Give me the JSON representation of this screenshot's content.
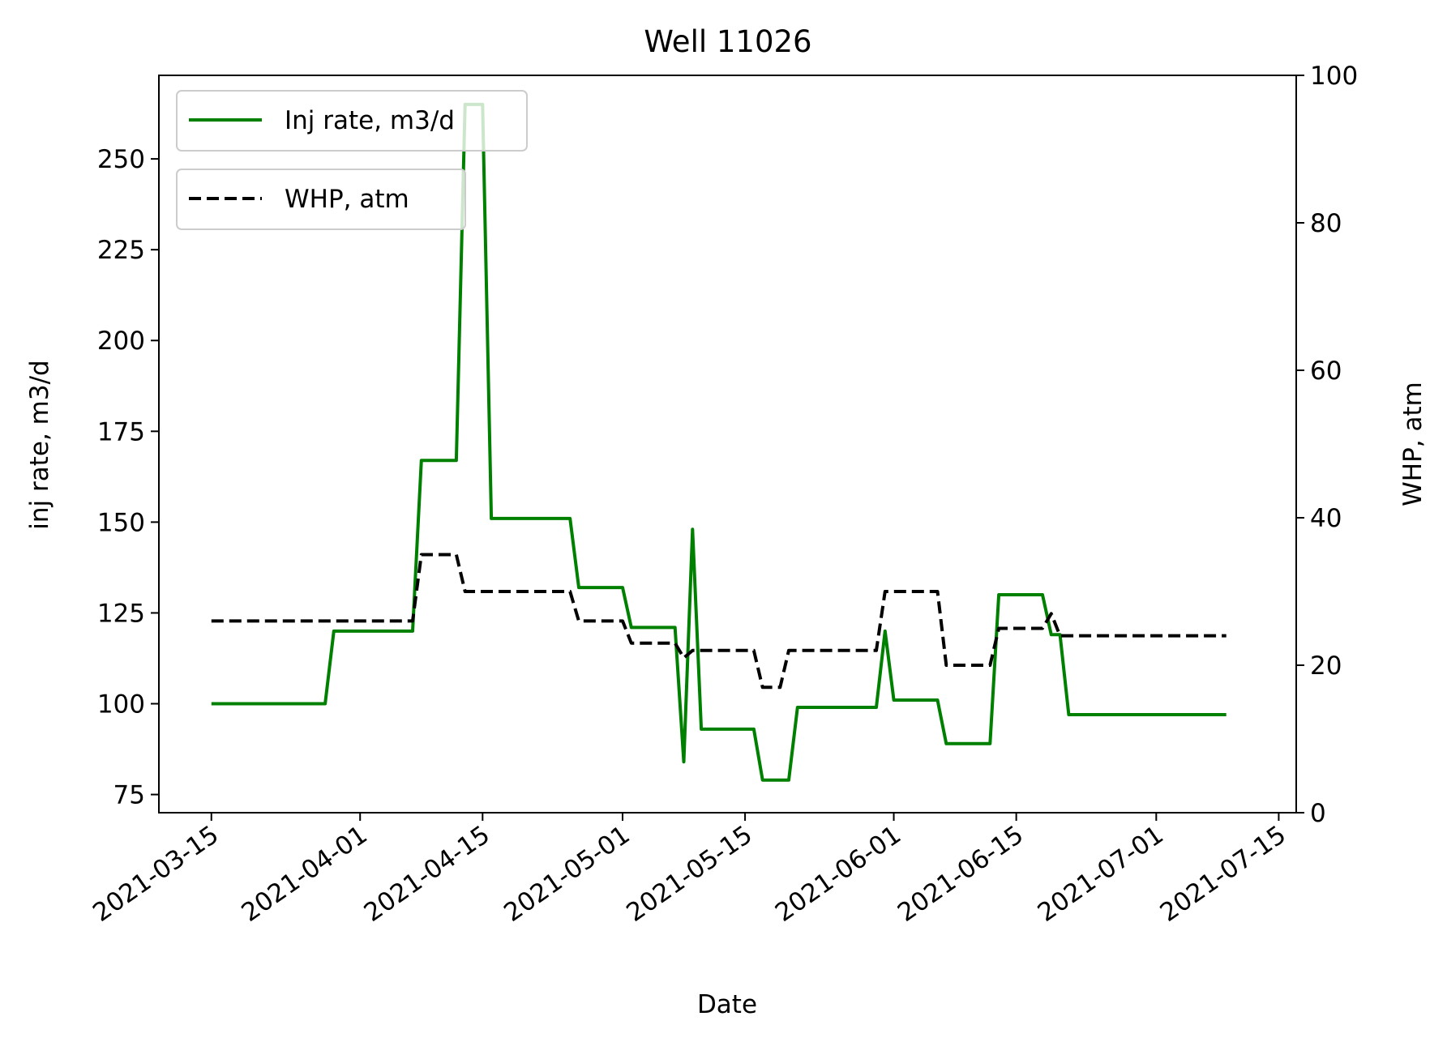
{
  "chart_data": {
    "type": "line",
    "title": "Well 11026",
    "xlabel": "Date",
    "ylabel_left": "inj rate, m3/d",
    "ylabel_right": "WHP, atm",
    "xlim": [
      "2021-03-09",
      "2021-07-17"
    ],
    "ylim_left": [
      70,
      273
    ],
    "ylim_right": [
      0,
      100
    ],
    "xticks": [
      "2021-03-15",
      "2021-04-01",
      "2021-04-15",
      "2021-05-01",
      "2021-05-15",
      "2021-06-01",
      "2021-06-15",
      "2021-07-01",
      "2021-07-15"
    ],
    "yticks_left": [
      75,
      100,
      125,
      150,
      175,
      200,
      225,
      250
    ],
    "yticks_right": [
      0,
      20,
      40,
      60,
      80,
      100
    ],
    "grid": false,
    "series": [
      {
        "name": "Inj rate, m3/d",
        "axis": "left",
        "color": "#008000",
        "style": "solid",
        "points": [
          [
            "2021-03-15",
            100
          ],
          [
            "2021-03-28",
            100
          ],
          [
            "2021-03-29",
            120
          ],
          [
            "2021-04-07",
            120
          ],
          [
            "2021-04-08",
            167
          ],
          [
            "2021-04-12",
            167
          ],
          [
            "2021-04-13",
            265
          ],
          [
            "2021-04-14",
            265
          ],
          [
            "2021-04-15",
            265
          ],
          [
            "2021-04-16",
            151
          ],
          [
            "2021-04-25",
            151
          ],
          [
            "2021-04-26",
            132
          ],
          [
            "2021-05-01",
            132
          ],
          [
            "2021-05-02",
            121
          ],
          [
            "2021-05-07",
            121
          ],
          [
            "2021-05-08",
            84
          ],
          [
            "2021-05-09",
            148
          ],
          [
            "2021-05-10",
            93
          ],
          [
            "2021-05-16",
            93
          ],
          [
            "2021-05-17",
            79
          ],
          [
            "2021-05-20",
            79
          ],
          [
            "2021-05-21",
            99
          ],
          [
            "2021-05-30",
            99
          ],
          [
            "2021-05-31",
            120
          ],
          [
            "2021-06-01",
            101
          ],
          [
            "2021-06-06",
            101
          ],
          [
            "2021-06-07",
            89
          ],
          [
            "2021-06-12",
            89
          ],
          [
            "2021-06-13",
            130
          ],
          [
            "2021-06-18",
            130
          ],
          [
            "2021-06-19",
            119
          ],
          [
            "2021-06-20",
            119
          ],
          [
            "2021-06-21",
            97
          ],
          [
            "2021-07-09",
            97
          ]
        ]
      },
      {
        "name": "WHP, atm",
        "axis": "right",
        "color": "#000000",
        "style": "dashed",
        "points": [
          [
            "2021-03-15",
            26
          ],
          [
            "2021-04-07",
            26
          ],
          [
            "2021-04-08",
            35
          ],
          [
            "2021-04-12",
            35
          ],
          [
            "2021-04-13",
            30
          ],
          [
            "2021-04-25",
            30
          ],
          [
            "2021-04-26",
            26
          ],
          [
            "2021-05-01",
            26
          ],
          [
            "2021-05-02",
            23
          ],
          [
            "2021-05-07",
            23
          ],
          [
            "2021-05-08",
            21
          ],
          [
            "2021-05-09",
            22
          ],
          [
            "2021-05-16",
            22
          ],
          [
            "2021-05-17",
            17
          ],
          [
            "2021-05-19",
            17
          ],
          [
            "2021-05-20",
            22
          ],
          [
            "2021-05-30",
            22
          ],
          [
            "2021-05-31",
            30
          ],
          [
            "2021-06-06",
            30
          ],
          [
            "2021-06-07",
            20
          ],
          [
            "2021-06-12",
            20
          ],
          [
            "2021-06-13",
            25
          ],
          [
            "2021-06-18",
            25
          ],
          [
            "2021-06-19",
            27
          ],
          [
            "2021-06-20",
            24
          ],
          [
            "2021-07-09",
            24
          ]
        ]
      }
    ],
    "legend_placement": "upper-left"
  }
}
